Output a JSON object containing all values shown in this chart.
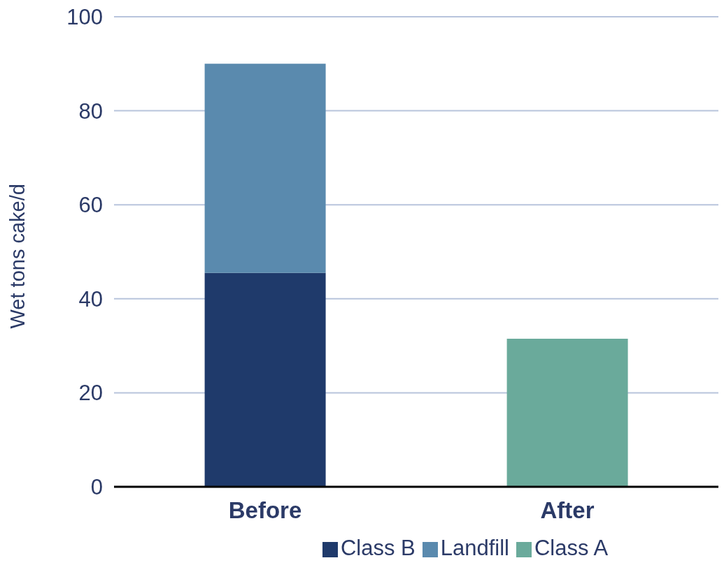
{
  "chart_data": {
    "type": "bar",
    "stacked": true,
    "ylabel": "Wet tons cake/d",
    "categories": [
      "Before",
      "After"
    ],
    "series": [
      {
        "name": "Class B",
        "color": "#1f3a6b",
        "values": [
          45.5,
          null
        ]
      },
      {
        "name": "Landfill",
        "color": "#5a8aae",
        "values": [
          44.5,
          null
        ]
      },
      {
        "name": "Class A",
        "color": "#6aaa9b",
        "values": [
          null,
          31.5
        ]
      }
    ],
    "ylim": [
      0,
      100
    ],
    "yticks": [
      0,
      20,
      40,
      60,
      80,
      100
    ],
    "grid": "y",
    "legend": "bottom"
  }
}
